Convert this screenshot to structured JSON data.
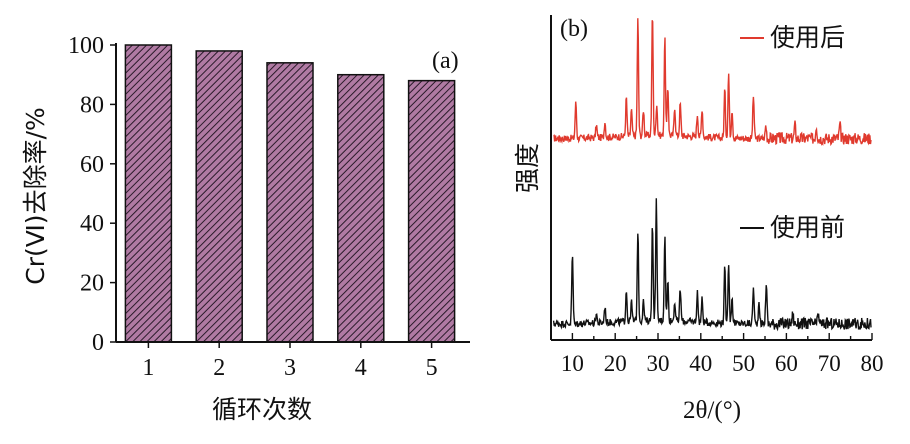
{
  "chart_data": [
    {
      "type": "bar",
      "panel_label": "(a)",
      "categories": [
        "1",
        "2",
        "3",
        "4",
        "5"
      ],
      "values": [
        100,
        98,
        94,
        90,
        88
      ],
      "xlabel": "循环次数",
      "ylabel": "Cr(Ⅵ)去除率/%",
      "ylim": [
        0,
        100
      ],
      "yticks": [
        "0",
        "20",
        "40",
        "60",
        "80",
        "100"
      ],
      "bar_fill": "#9b5a86",
      "bar_pattern": "diagonal-hatch",
      "grid": false
    },
    {
      "type": "line",
      "panel_label": "(b)",
      "xlabel": "2θ/(°)",
      "ylabel": "强度",
      "xlim": [
        5,
        80
      ],
      "xticks": [
        "10",
        "20",
        "30",
        "40",
        "50",
        "60",
        "70",
        "80"
      ],
      "legend_position": "top-right (per trace)",
      "series": [
        {
          "name": "使用后",
          "color": "#e03a2e",
          "baseline": 0.62,
          "peaks": [
            {
              "x": 10.8,
              "h": 0.11
            },
            {
              "x": 15.6,
              "h": 0.04
            },
            {
              "x": 17.6,
              "h": 0.05
            },
            {
              "x": 22.6,
              "h": 0.12
            },
            {
              "x": 23.8,
              "h": 0.08
            },
            {
              "x": 25.3,
              "h": 0.36
            },
            {
              "x": 26.6,
              "h": 0.08
            },
            {
              "x": 28.7,
              "h": 0.38
            },
            {
              "x": 29.7,
              "h": 0.1
            },
            {
              "x": 31.6,
              "h": 0.3
            },
            {
              "x": 32.3,
              "h": 0.15
            },
            {
              "x": 33.9,
              "h": 0.09
            },
            {
              "x": 35.2,
              "h": 0.1
            },
            {
              "x": 39.2,
              "h": 0.07
            },
            {
              "x": 40.3,
              "h": 0.09
            },
            {
              "x": 45.6,
              "h": 0.15
            },
            {
              "x": 46.5,
              "h": 0.2
            },
            {
              "x": 47.3,
              "h": 0.09
            },
            {
              "x": 52.3,
              "h": 0.13
            },
            {
              "x": 55.2,
              "h": 0.04
            },
            {
              "x": 62.0,
              "h": 0.04
            },
            {
              "x": 67.0,
              "h": 0.04
            },
            {
              "x": 72.5,
              "h": 0.04
            }
          ]
        },
        {
          "name": "使用前",
          "color": "#111111",
          "baseline": 0.05,
          "peaks": [
            {
              "x": 10.0,
              "h": 0.21
            },
            {
              "x": 15.6,
              "h": 0.03
            },
            {
              "x": 17.6,
              "h": 0.05
            },
            {
              "x": 22.6,
              "h": 0.1
            },
            {
              "x": 23.8,
              "h": 0.06
            },
            {
              "x": 25.3,
              "h": 0.28
            },
            {
              "x": 26.6,
              "h": 0.06
            },
            {
              "x": 28.7,
              "h": 0.3
            },
            {
              "x": 29.6,
              "h": 0.37
            },
            {
              "x": 31.6,
              "h": 0.26
            },
            {
              "x": 32.3,
              "h": 0.12
            },
            {
              "x": 33.9,
              "h": 0.06
            },
            {
              "x": 35.2,
              "h": 0.1
            },
            {
              "x": 39.2,
              "h": 0.09
            },
            {
              "x": 40.3,
              "h": 0.07
            },
            {
              "x": 45.6,
              "h": 0.17
            },
            {
              "x": 46.5,
              "h": 0.19
            },
            {
              "x": 47.3,
              "h": 0.08
            },
            {
              "x": 52.3,
              "h": 0.11
            },
            {
              "x": 53.6,
              "h": 0.07
            },
            {
              "x": 55.3,
              "h": 0.13
            },
            {
              "x": 61.5,
              "h": 0.03
            },
            {
              "x": 67.5,
              "h": 0.03
            }
          ]
        }
      ]
    }
  ]
}
